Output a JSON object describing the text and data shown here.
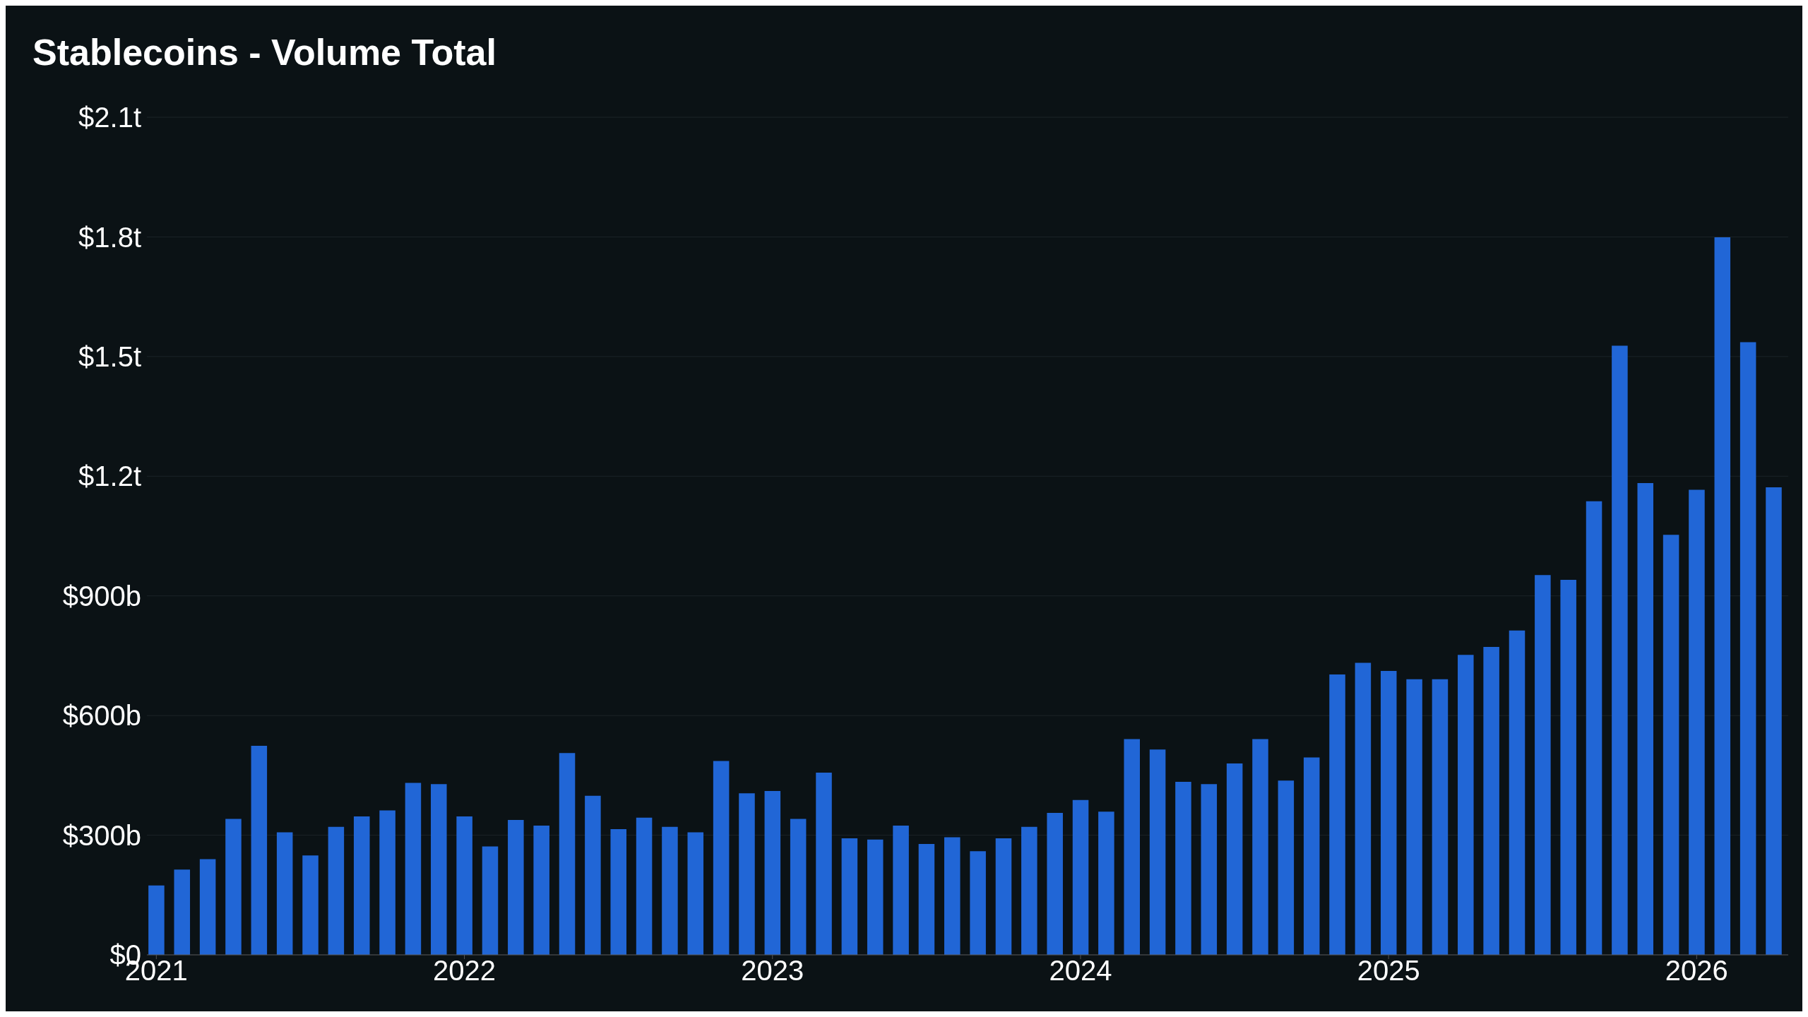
{
  "chart_data": {
    "type": "bar",
    "title": "Stablecoins - Volume Total",
    "x": [
      "2021-01",
      "2021-02",
      "2021-03",
      "2021-04",
      "2021-05",
      "2021-06",
      "2021-07",
      "2021-08",
      "2021-09",
      "2021-10",
      "2021-11",
      "2021-12",
      "2022-01",
      "2022-02",
      "2022-03",
      "2022-04",
      "2022-05",
      "2022-06",
      "2022-07",
      "2022-08",
      "2022-09",
      "2022-10",
      "2022-11",
      "2022-12",
      "2023-01",
      "2023-02",
      "2023-03",
      "2023-04",
      "2023-05",
      "2023-06",
      "2023-07",
      "2023-08",
      "2023-09",
      "2023-10",
      "2023-11",
      "2023-12",
      "2024-01",
      "2024-02",
      "2024-03",
      "2024-04",
      "2024-05",
      "2024-06",
      "2024-07",
      "2024-08",
      "2024-09",
      "2024-10",
      "2024-11",
      "2024-12",
      "2025-01",
      "2025-02",
      "2025-03",
      "2025-04",
      "2025-05",
      "2025-06",
      "2025-07",
      "2025-08",
      "2025-09",
      "2025-10",
      "2025-11",
      "2025-12",
      "2026-01",
      "2026-02",
      "2026-03",
      "2026-04"
    ],
    "values": [
      174000000000,
      214000000000,
      240000000000,
      341000000000,
      524000000000,
      307000000000,
      249000000000,
      321000000000,
      347000000000,
      362000000000,
      431000000000,
      428000000000,
      347000000000,
      272000000000,
      338000000000,
      324000000000,
      506000000000,
      399000000000,
      315000000000,
      344000000000,
      321000000000,
      307000000000,
      486000000000,
      405000000000,
      411000000000,
      341000000000,
      457000000000,
      292000000000,
      289000000000,
      324000000000,
      278000000000,
      295000000000,
      260000000000,
      292000000000,
      321000000000,
      356000000000,
      388000000000,
      359000000000,
      541000000000,
      515000000000,
      434000000000,
      428000000000,
      480000000000,
      541000000000,
      437000000000,
      495000000000,
      703000000000,
      732000000000,
      712000000000,
      691000000000,
      691000000000,
      752000000000,
      772000000000,
      813000000000,
      952000000000,
      940000000000,
      1137000000000,
      1527000000000,
      1183000000000,
      1053000000000,
      1166000000000,
      1799000000000,
      1536000000000,
      1172000000000
    ],
    "color": "#2166d6",
    "xlim": [
      "2020-12-20",
      "2026-04-18"
    ],
    "xticks": [
      "2021",
      "2022",
      "2023",
      "2024",
      "2025",
      "2026"
    ],
    "ylim": [
      0,
      2100000000000
    ],
    "yticks": [
      {
        "value": 0,
        "label": "$0"
      },
      {
        "value": 300000000000,
        "label": "$300b"
      },
      {
        "value": 600000000000,
        "label": "$600b"
      },
      {
        "value": 900000000000,
        "label": "$900b"
      },
      {
        "value": 1200000000000,
        "label": "$1.2t"
      },
      {
        "value": 1500000000000,
        "label": "$1.5t"
      },
      {
        "value": 1800000000000,
        "label": "$1.8t"
      },
      {
        "value": 2100000000000,
        "label": "$2.1t"
      }
    ],
    "grid": "y"
  }
}
